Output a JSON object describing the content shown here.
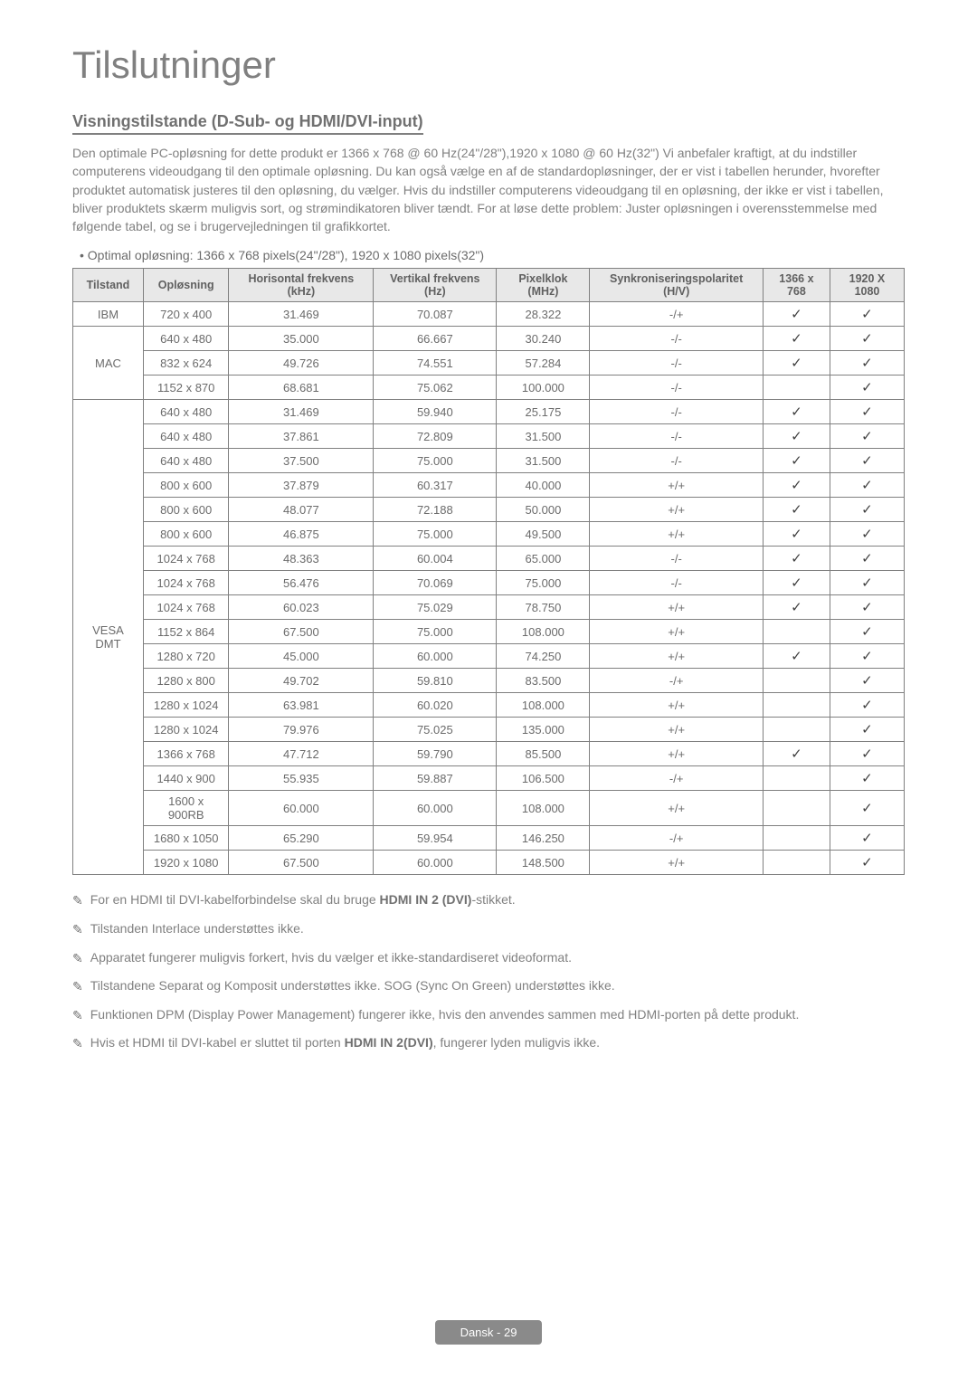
{
  "title": "Tilslutninger",
  "subtitle": "Visningstilstande (D-Sub- og HDMI/DVI-input)",
  "intro": "Den optimale PC-opløsning for dette produkt er 1366 x 768 @ 60 Hz(24\"/28\"),1920 x 1080 @ 60 Hz(32\") Vi anbefaler kraftigt, at du indstiller computerens videoudgang til den optimale opløsning. Du kan også vælge en af de standardopløsninger, der er vist i tabellen herunder, hvorefter produktet automatisk justeres til den opløsning, du vælger. Hvis du indstiller computerens videoudgang til en opløsning, der ikke er vist i tabellen, bliver produktets skærm muligvis sort, og strømindikatoren bliver tændt. For at løse dette problem: Juster opløsningen i overensstemmelse med følgende tabel, og se i brugervejledningen til grafikkortet.",
  "bullet": "•  Optimal opløsning: 1366 x 768 pixels(24\"/28\"), 1920 x 1080 pixels(32\")",
  "columns": [
    "Tilstand",
    "Opløsning",
    "Horisontal frekvens (kHz)",
    "Vertikal frekvens (Hz)",
    "Pixelklok (MHz)",
    "Synkroniseringspolaritet (H/V)",
    "1366 x 768",
    "1920 X 1080"
  ],
  "groups": [
    {
      "label": "IBM",
      "rows": [
        {
          "res": "720 x 400",
          "h": "31.469",
          "v": "70.087",
          "p": "28.322",
          "s": "-/+",
          "c1": true,
          "c2": true
        }
      ]
    },
    {
      "label": "MAC",
      "rows": [
        {
          "res": "640 x 480",
          "h": "35.000",
          "v": "66.667",
          "p": "30.240",
          "s": "-/-",
          "c1": true,
          "c2": true
        },
        {
          "res": "832 x 624",
          "h": "49.726",
          "v": "74.551",
          "p": "57.284",
          "s": "-/-",
          "c1": true,
          "c2": true
        },
        {
          "res": "1152 x 870",
          "h": "68.681",
          "v": "75.062",
          "p": "100.000",
          "s": "-/-",
          "c1": false,
          "c2": true
        }
      ]
    },
    {
      "label": "VESA DMT",
      "rows": [
        {
          "res": "640 x 480",
          "h": "31.469",
          "v": "59.940",
          "p": "25.175",
          "s": "-/-",
          "c1": true,
          "c2": true
        },
        {
          "res": "640 x 480",
          "h": "37.861",
          "v": "72.809",
          "p": "31.500",
          "s": "-/-",
          "c1": true,
          "c2": true
        },
        {
          "res": "640 x 480",
          "h": "37.500",
          "v": "75.000",
          "p": "31.500",
          "s": "-/-",
          "c1": true,
          "c2": true
        },
        {
          "res": "800 x 600",
          "h": "37.879",
          "v": "60.317",
          "p": "40.000",
          "s": "+/+",
          "c1": true,
          "c2": true
        },
        {
          "res": "800 x 600",
          "h": "48.077",
          "v": "72.188",
          "p": "50.000",
          "s": "+/+",
          "c1": true,
          "c2": true
        },
        {
          "res": "800 x 600",
          "h": "46.875",
          "v": "75.000",
          "p": "49.500",
          "s": "+/+",
          "c1": true,
          "c2": true
        },
        {
          "res": "1024 x 768",
          "h": "48.363",
          "v": "60.004",
          "p": "65.000",
          "s": "-/-",
          "c1": true,
          "c2": true
        },
        {
          "res": "1024 x 768",
          "h": "56.476",
          "v": "70.069",
          "p": "75.000",
          "s": "-/-",
          "c1": true,
          "c2": true
        },
        {
          "res": "1024 x 768",
          "h": "60.023",
          "v": "75.029",
          "p": "78.750",
          "s": "+/+",
          "c1": true,
          "c2": true
        },
        {
          "res": "1152 x 864",
          "h": "67.500",
          "v": "75.000",
          "p": "108.000",
          "s": "+/+",
          "c1": false,
          "c2": true
        },
        {
          "res": "1280 x 720",
          "h": "45.000",
          "v": "60.000",
          "p": "74.250",
          "s": "+/+",
          "c1": true,
          "c2": true
        },
        {
          "res": "1280 x 800",
          "h": "49.702",
          "v": "59.810",
          "p": "83.500",
          "s": "-/+",
          "c1": false,
          "c2": true
        },
        {
          "res": "1280 x 1024",
          "h": "63.981",
          "v": "60.020",
          "p": "108.000",
          "s": "+/+",
          "c1": false,
          "c2": true
        },
        {
          "res": "1280 x 1024",
          "h": "79.976",
          "v": "75.025",
          "p": "135.000",
          "s": "+/+",
          "c1": false,
          "c2": true
        },
        {
          "res": "1366 x 768",
          "h": "47.712",
          "v": "59.790",
          "p": "85.500",
          "s": "+/+",
          "c1": true,
          "c2": true
        },
        {
          "res": "1440 x 900",
          "h": "55.935",
          "v": "59.887",
          "p": "106.500",
          "s": "-/+",
          "c1": false,
          "c2": true
        },
        {
          "res": "1600 x 900RB",
          "h": "60.000",
          "v": "60.000",
          "p": "108.000",
          "s": "+/+",
          "c1": false,
          "c2": true
        },
        {
          "res": "1680 x 1050",
          "h": "65.290",
          "v": "59.954",
          "p": "146.250",
          "s": "-/+",
          "c1": false,
          "c2": true
        },
        {
          "res": "1920 x 1080",
          "h": "67.500",
          "v": "60.000",
          "p": "148.500",
          "s": "+/+",
          "c1": false,
          "c2": true
        }
      ]
    }
  ],
  "notes": [
    {
      "pre": "For en HDMI til DVI-kabelforbindelse skal du bruge ",
      "bold": "HDMI IN 2 (DVI)",
      "post": "-stikket."
    },
    {
      "pre": "Tilstanden Interlace understøttes ikke.",
      "bold": "",
      "post": ""
    },
    {
      "pre": "Apparatet fungerer muligvis forkert, hvis du vælger et ikke-standardiseret videoformat.",
      "bold": "",
      "post": ""
    },
    {
      "pre": "Tilstandene Separat og Komposit understøttes ikke. SOG (Sync On Green) understøttes ikke.",
      "bold": "",
      "post": ""
    },
    {
      "pre": "Funktionen DPM (Display Power Management) fungerer ikke, hvis den anvendes sammen med HDMI-porten på dette produkt.",
      "bold": "",
      "post": ""
    },
    {
      "pre": "Hvis et HDMI til DVI-kabel er sluttet til porten ",
      "bold": "HDMI IN 2(DVI)",
      "post": ", fungerer lyden muligvis ikke."
    }
  ],
  "footer": "Dansk - 29",
  "colors": {
    "text": "#6b6b6b",
    "heading": "#808080",
    "border": "#808080",
    "thbg": "#e8e8e8",
    "footerbg": "#8a8a8a",
    "footertext": "#ffffff"
  }
}
